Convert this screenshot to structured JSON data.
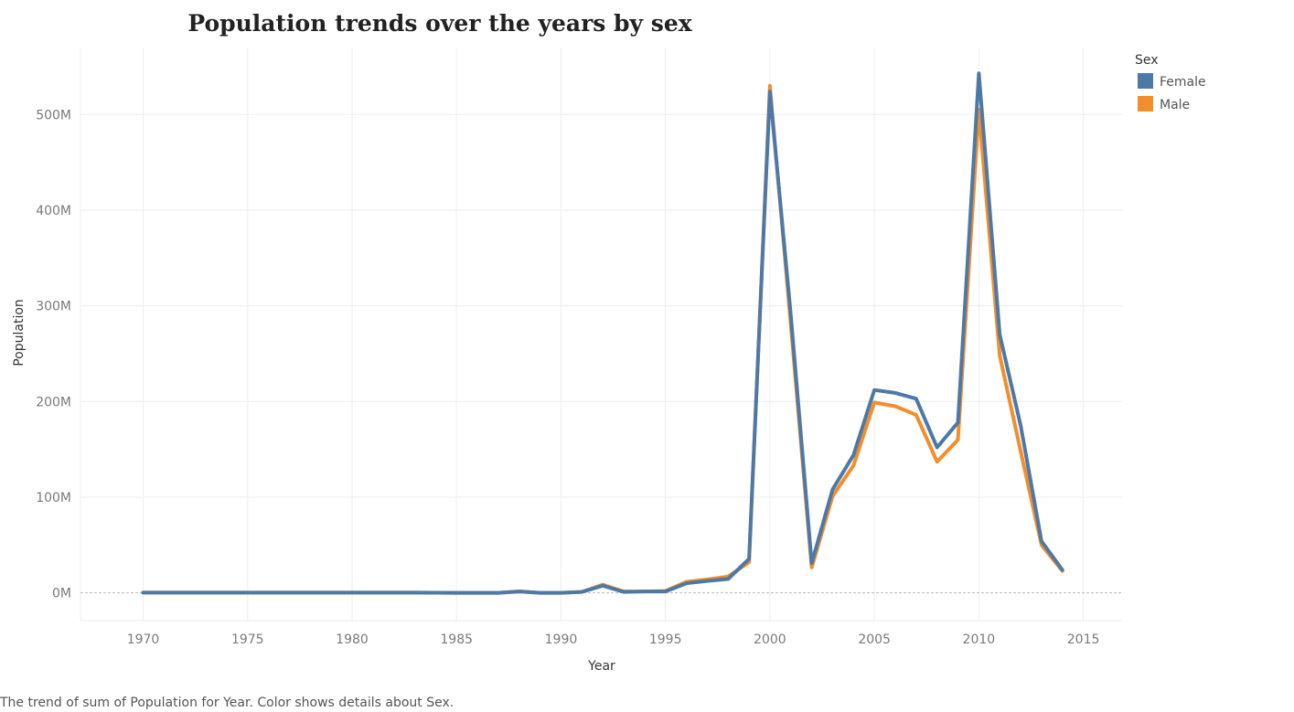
{
  "chart_data": {
    "type": "line",
    "title": "Population trends over the years by sex",
    "xlabel": "Year",
    "ylabel": "Population",
    "x_ticks": [
      "1970",
      "1975",
      "1980",
      "1985",
      "1990",
      "1995",
      "2000",
      "2005",
      "2010",
      "2015"
    ],
    "y_ticks": [
      "0M",
      "100M",
      "200M",
      "300M",
      "400M",
      "500M"
    ],
    "xlim": [
      1967,
      2016.9
    ],
    "ylim": [
      -29,
      570
    ],
    "grid": true,
    "legend": {
      "title": "Sex",
      "placement": "top-right"
    },
    "caption": "The trend of sum of Population for Year.  Color shows details about Sex.",
    "x": [
      1970,
      1971,
      1972,
      1973,
      1974,
      1975,
      1976,
      1977,
      1978,
      1979,
      1980,
      1981,
      1982,
      1983,
      1984,
      1985,
      1986,
      1987,
      1988,
      1989,
      1990,
      1991,
      1992,
      1993,
      1994,
      1995,
      1996,
      1997,
      1998,
      1999,
      2000,
      2001,
      2002,
      2003,
      2004,
      2005,
      2006,
      2007,
      2008,
      2009,
      2010,
      2011,
      2012,
      2013,
      2014
    ],
    "series": [
      {
        "name": "Male",
        "color": "#f28e2b",
        "values": [
          0.2,
          0.2,
          0.2,
          0.2,
          0.2,
          0.2,
          0.2,
          0.2,
          0.2,
          0.2,
          0.2,
          0.2,
          0.2,
          0.2,
          0.1,
          0,
          0,
          0,
          1.5,
          0,
          0,
          1,
          8.5,
          1.5,
          1.5,
          2,
          11.5,
          14,
          17,
          32,
          530,
          280,
          26.5,
          101,
          133,
          199,
          195,
          186,
          137,
          160,
          505,
          248,
          148,
          50,
          23
        ]
      },
      {
        "name": "Female",
        "color": "#4e79a7",
        "values": [
          0.2,
          0.2,
          0.2,
          0.2,
          0.2,
          0.2,
          0.2,
          0.2,
          0.2,
          0.2,
          0.2,
          0.2,
          0.2,
          0.2,
          0.1,
          0,
          0,
          0,
          1.5,
          0,
          0,
          1,
          7.5,
          1,
          1.5,
          1.5,
          10,
          12.5,
          14.5,
          35.5,
          524,
          290,
          31,
          108,
          144,
          212,
          209,
          203,
          152,
          178,
          543,
          270,
          175,
          54,
          24
        ]
      }
    ]
  }
}
